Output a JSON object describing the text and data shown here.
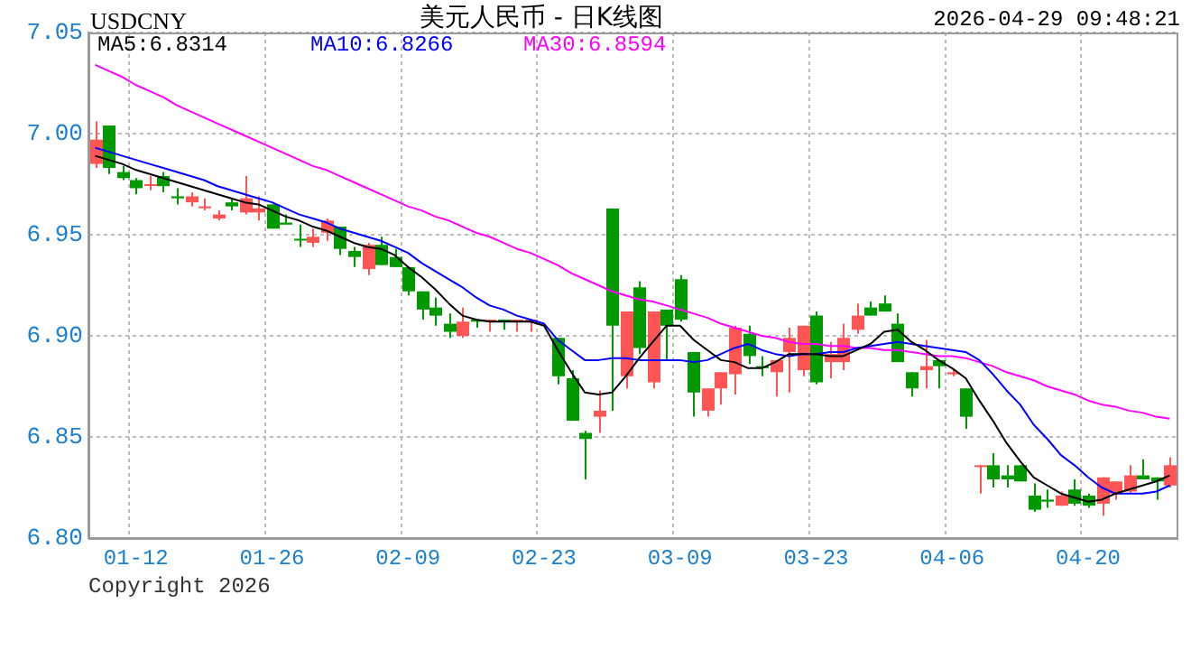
{
  "chart_data": {
    "type": "candlestick",
    "title": "美元人民币 - 日K线图",
    "annotations": [
      "USDCNY",
      "2026-04-29 09:48:21",
      "Copyright 2026"
    ],
    "categories": [
      null,
      null,
      null,
      "01-12",
      null,
      null,
      null,
      null,
      null,
      null,
      null,
      null,
      null,
      "01-26",
      null,
      null,
      null,
      null,
      null,
      null,
      null,
      null,
      null,
      "02-09",
      null,
      null,
      null,
      null,
      null,
      null,
      null,
      null,
      null,
      "02-23",
      null,
      null,
      null,
      null,
      null,
      null,
      null,
      null,
      null,
      "03-09",
      null,
      null,
      null,
      null,
      null,
      null,
      null,
      null,
      null,
      "03-23",
      null,
      null,
      null,
      null,
      null,
      null,
      null,
      null,
      null,
      "04-06",
      null,
      null,
      null,
      null,
      null,
      null,
      null,
      null,
      null,
      "04-20",
      null,
      null,
      null,
      null,
      null,
      null
    ],
    "ohlc": [
      [
        6.985,
        7.006,
        6.983,
        6.997
      ],
      [
        7.004,
        7.004,
        6.98,
        6.983
      ],
      [
        6.981,
        6.984,
        6.977,
        6.978
      ],
      [
        6.977,
        6.978,
        6.97,
        6.973
      ],
      [
        6.975,
        6.979,
        6.972,
        6.975
      ],
      [
        6.979,
        6.981,
        6.971,
        6.974
      ],
      [
        6.969,
        6.973,
        6.965,
        6.968
      ],
      [
        6.966,
        6.971,
        6.964,
        6.969
      ],
      [
        6.964,
        6.968,
        6.962,
        6.964
      ],
      [
        6.958,
        6.962,
        6.957,
        6.96
      ],
      [
        6.966,
        6.968,
        6.962,
        6.964
      ],
      [
        6.961,
        6.979,
        6.96,
        6.968
      ],
      [
        6.961,
        6.969,
        6.957,
        6.963
      ],
      [
        6.965,
        6.965,
        6.953,
        6.953
      ],
      [
        6.956,
        6.96,
        6.955,
        6.955
      ],
      [
        6.948,
        6.955,
        6.944,
        6.948
      ],
      [
        6.946,
        6.953,
        6.944,
        6.949
      ],
      [
        6.951,
        6.958,
        6.947,
        6.957
      ],
      [
        6.954,
        6.954,
        6.94,
        6.943
      ],
      [
        6.942,
        6.944,
        6.934,
        6.939
      ],
      [
        6.933,
        6.946,
        6.93,
        6.945
      ],
      [
        6.945,
        6.949,
        6.935,
        6.935
      ],
      [
        6.939,
        6.943,
        6.934,
        6.934
      ],
      [
        6.934,
        6.934,
        6.92,
        6.922
      ],
      [
        6.922,
        6.922,
        6.908,
        6.913
      ],
      [
        6.914,
        6.919,
        6.905,
        6.91
      ],
      [
        6.906,
        6.911,
        6.899,
        6.902
      ],
      [
        6.9,
        6.914,
        6.899,
        6.907
      ],
      [
        6.908,
        6.908,
        6.904,
        6.907
      ],
      [
        6.907,
        6.908,
        6.902,
        6.908
      ],
      [
        6.908,
        6.908,
        6.903,
        6.907
      ],
      [
        6.907,
        6.908,
        6.902,
        6.908
      ],
      [
        6.908,
        6.908,
        6.902,
        6.908
      ],
      null,
      [
        6.899,
        6.899,
        6.876,
        6.88
      ],
      [
        6.879,
        6.883,
        6.858,
        6.858
      ],
      [
        6.852,
        6.853,
        6.829,
        6.849
      ],
      [
        6.86,
        6.873,
        6.852,
        6.863
      ],
      [
        6.963,
        6.963,
        6.863,
        6.905
      ],
      [
        6.88,
        6.912,
        6.874,
        6.912
      ],
      [
        6.924,
        6.927,
        6.891,
        6.894
      ],
      [
        6.877,
        6.912,
        6.874,
        6.912
      ],
      [
        6.913,
        6.913,
        6.888,
        6.905
      ],
      [
        6.928,
        6.93,
        6.907,
        6.908
      ],
      [
        6.892,
        6.892,
        6.86,
        6.872
      ],
      [
        6.863,
        6.874,
        6.86,
        6.874
      ],
      [
        6.874,
        6.882,
        6.866,
        6.882
      ],
      [
        6.881,
        6.905,
        6.871,
        6.904
      ],
      [
        6.901,
        6.905,
        6.886,
        6.89
      ],
      [
        6.885,
        6.89,
        6.88,
        6.884
      ],
      [
        6.882,
        6.888,
        6.87,
        6.888
      ],
      [
        6.892,
        6.904,
        6.872,
        6.899
      ],
      [
        6.883,
        6.905,
        6.88,
        6.905
      ],
      [
        6.91,
        6.912,
        6.876,
        6.877
      ],
      [
        6.887,
        6.897,
        6.879,
        6.891
      ],
      [
        6.887,
        6.906,
        6.883,
        6.899
      ],
      [
        6.903,
        6.916,
        6.901,
        6.91
      ],
      [
        6.914,
        6.917,
        6.91,
        6.91
      ],
      [
        6.916,
        6.92,
        6.912,
        6.912
      ],
      [
        6.906,
        6.911,
        6.887,
        6.887
      ],
      [
        6.882,
        6.882,
        6.87,
        6.874
      ],
      [
        6.883,
        6.898,
        6.874,
        6.885
      ],
      [
        6.888,
        6.888,
        6.874,
        6.885
      ],
      [
        6.881,
        6.883,
        6.88,
        6.882
      ],
      [
        6.874,
        6.874,
        6.854,
        6.86
      ],
      [
        6.836,
        6.836,
        6.822,
        6.836
      ],
      [
        6.836,
        6.842,
        6.825,
        6.829
      ],
      [
        6.831,
        6.836,
        6.825,
        6.829
      ],
      [
        6.836,
        6.836,
        6.828,
        6.828
      ],
      [
        6.821,
        6.827,
        6.813,
        6.814
      ],
      [
        6.819,
        6.824,
        6.815,
        6.818
      ],
      [
        6.816,
        6.823,
        6.816,
        6.821
      ],
      [
        6.824,
        6.829,
        6.816,
        6.817
      ],
      [
        6.821,
        6.822,
        6.815,
        6.816
      ],
      [
        6.817,
        6.83,
        6.811,
        6.83
      ],
      [
        6.822,
        6.828,
        6.819,
        6.828
      ],
      [
        6.823,
        6.836,
        6.822,
        6.831
      ],
      [
        6.831,
        6.839,
        6.829,
        6.829
      ],
      [
        6.83,
        6.83,
        6.819,
        6.828
      ],
      [
        6.826,
        6.84,
        6.825,
        6.836
      ]
    ],
    "colors": [
      "#ff5555",
      "#009900",
      "#009900",
      "#009900",
      "#ff5555",
      "#009900",
      "#009900",
      "#ff5555",
      "#ff5555",
      "#ff5555",
      "#009900",
      "#ff5555",
      "#ff5555",
      "#009900",
      "#009900",
      "#009900",
      "#ff5555",
      "#ff5555",
      "#009900",
      "#009900",
      "#ff5555",
      "#009900",
      "#009900",
      "#009900",
      "#009900",
      "#009900",
      "#009900",
      "#ff5555",
      "#009900",
      "#ff5555",
      "#009900",
      "#ff5555",
      "#ff5555",
      null,
      "#009900",
      "#009900",
      "#009900",
      "#ff5555",
      "#009900",
      "#ff5555",
      "#009900",
      "#ff5555",
      "#009900",
      "#009900",
      "#009900",
      "#ff5555",
      "#ff5555",
      "#ff5555",
      "#009900",
      "#009900",
      "#ff5555",
      "#ff5555",
      "#ff5555",
      "#009900",
      "#ff5555",
      "#ff5555",
      "#ff5555",
      "#009900",
      "#009900",
      "#009900",
      "#009900",
      "#ff5555",
      "#009900",
      "#ff5555",
      "#009900",
      "#ff5555",
      "#009900",
      "#009900",
      "#009900",
      "#009900",
      "#009900",
      "#ff5555",
      "#009900",
      "#009900",
      "#ff5555",
      "#ff5555",
      "#ff5555",
      "#009900",
      "#009900",
      "#ff5555"
    ],
    "series": [
      {
        "name": "MA5:6.8314",
        "type": "line",
        "color": "#000000",
        "values": [
          6.989,
          6.987,
          6.985,
          6.982,
          6.98,
          6.978,
          6.976,
          6.974,
          6.972,
          6.97,
          6.968,
          6.966,
          6.965,
          6.962,
          6.959,
          6.957,
          6.954,
          6.952,
          6.949,
          6.946,
          6.944,
          6.943,
          6.94,
          6.934,
          6.929,
          6.923,
          6.916,
          6.91,
          6.908,
          6.907,
          6.907,
          6.907,
          6.907,
          6.905,
          6.893,
          6.882,
          6.872,
          6.871,
          6.872,
          6.88,
          6.889,
          6.897,
          6.905,
          6.905,
          6.898,
          6.893,
          6.888,
          6.887,
          6.884,
          6.884,
          6.887,
          6.891,
          6.891,
          6.891,
          6.89,
          6.89,
          6.893,
          6.896,
          6.902,
          6.903,
          6.897,
          6.893,
          6.888,
          6.884,
          6.879,
          6.868,
          6.858,
          6.847,
          6.838,
          6.83,
          6.826,
          6.822,
          6.82,
          6.818,
          6.819,
          6.822,
          6.824,
          6.826,
          6.828,
          6.831
        ]
      },
      {
        "name": "MA10:6.8266",
        "type": "line",
        "color": "#0000ff",
        "values": [
          6.993,
          6.991,
          6.989,
          6.987,
          6.985,
          6.983,
          6.981,
          6.979,
          6.977,
          6.974,
          6.972,
          6.97,
          6.968,
          6.966,
          6.963,
          6.96,
          6.958,
          6.956,
          6.953,
          6.951,
          6.949,
          6.947,
          6.944,
          6.941,
          6.936,
          6.932,
          6.928,
          6.924,
          6.919,
          6.915,
          6.913,
          6.91,
          6.908,
          6.906,
          6.898,
          6.893,
          6.888,
          6.888,
          6.889,
          6.889,
          6.888,
          6.888,
          6.888,
          6.888,
          6.887,
          6.888,
          6.891,
          6.894,
          6.896,
          6.893,
          6.891,
          6.89,
          6.891,
          6.891,
          6.892,
          6.892,
          6.894,
          6.895,
          6.896,
          6.897,
          6.896,
          6.895,
          6.894,
          6.893,
          6.892,
          6.888,
          6.881,
          6.873,
          6.866,
          6.856,
          6.849,
          6.841,
          6.836,
          6.83,
          6.825,
          6.822,
          6.822,
          6.822,
          6.823,
          6.826
        ]
      },
      {
        "name": "MA30:6.8594",
        "type": "line",
        "color": "#ff00ff",
        "values": [
          7.034,
          7.031,
          7.028,
          7.024,
          7.021,
          7.018,
          7.014,
          7.011,
          7.008,
          7.005,
          7.002,
          6.999,
          6.996,
          6.993,
          6.99,
          6.987,
          6.984,
          6.982,
          6.979,
          6.976,
          6.973,
          6.97,
          6.967,
          6.964,
          6.962,
          6.959,
          6.957,
          6.954,
          6.951,
          6.949,
          6.946,
          6.943,
          6.941,
          6.938,
          6.935,
          6.931,
          6.928,
          6.925,
          6.922,
          6.92,
          6.918,
          6.917,
          6.915,
          6.913,
          6.911,
          6.909,
          6.906,
          6.904,
          6.902,
          6.9,
          6.899,
          6.897,
          6.896,
          6.896,
          6.895,
          6.895,
          6.894,
          6.894,
          6.893,
          6.893,
          6.892,
          6.891,
          6.89,
          6.89,
          6.889,
          6.887,
          6.885,
          6.882,
          6.88,
          6.878,
          6.875,
          6.873,
          6.871,
          6.868,
          6.866,
          6.865,
          6.863,
          6.862,
          6.86,
          6.859
        ]
      }
    ],
    "ylim": [
      6.8,
      7.05
    ],
    "yticks": [
      {
        "value": 6.8,
        "label": "6.80"
      },
      6.85,
      {
        "value": 6.9,
        "label": "6.90"
      },
      6.95,
      {
        "value": 7,
        "label": "7.00"
      },
      7.05
    ],
    "grid": true,
    "legend": "top left",
    "line_style": "solid",
    "marker": "none"
  }
}
